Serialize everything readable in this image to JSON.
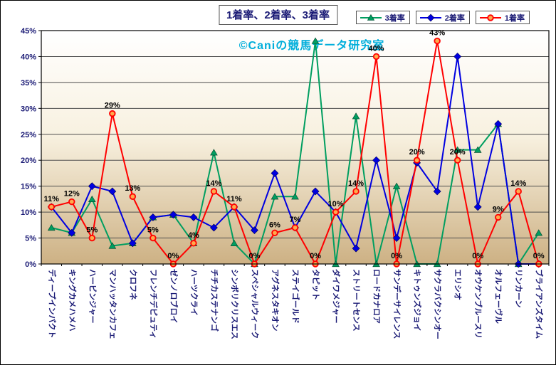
{
  "chart_data": {
    "type": "line",
    "title": "1着率、2着率、3着率",
    "watermark": "©Caniの競馬データ研究室",
    "legend_position": "top-right",
    "grid": true,
    "ylim": [
      0,
      45
    ],
    "y_tick_step": 5,
    "y_ticks": [
      "0%",
      "5%",
      "10%",
      "15%",
      "20%",
      "25%",
      "30%",
      "35%",
      "40%",
      "45%"
    ],
    "categories": [
      "ディープインパクト",
      "キングカメハメハ",
      "ハービンジャー",
      "マンハッタンカフェ",
      "クロフネ",
      "フレンチデピュティ",
      "ゼンノロブロイ",
      "ハーツクライ",
      "チチカステナンゴ",
      "シンボリクリスエス",
      "スペシャルウィーク",
      "アグネスタキオン",
      "ステイゴールド",
      "タピット",
      "ダイワメジャー",
      "ストリートセンス",
      "ロードカナロア",
      "サンデーサイレンス",
      "キトゥンズジョイ",
      "サクラバクシンオー",
      "エリシオ",
      "オウケンブルースリ",
      "オルフェーヴル",
      "リンカーン",
      "ブライアンズタイム"
    ],
    "series": [
      {
        "name": "3着率",
        "color": "#009E60",
        "marker": "triangle",
        "values": [
          7,
          6,
          12.5,
          3.5,
          4,
          9,
          9.5,
          4,
          21.5,
          4,
          0,
          13,
          13,
          43,
          0,
          28.5,
          0,
          15,
          0,
          0,
          22,
          22,
          27,
          0,
          6
        ]
      },
      {
        "name": "2着率",
        "color": "#0000E0",
        "marker": "diamond",
        "values": [
          11,
          6,
          15,
          14,
          4,
          9,
          9.5,
          9,
          7,
          11,
          6.5,
          17.5,
          7,
          14,
          10,
          3,
          20,
          5,
          19.5,
          14,
          40,
          11,
          27,
          0,
          0
        ]
      },
      {
        "name": "1着率",
        "color": "#FF0000",
        "marker": "circle",
        "marker_fill": "#FFA94D",
        "values": [
          11,
          12,
          5,
          29,
          13,
          5,
          0,
          4,
          14,
          11,
          0,
          6,
          7,
          0,
          10,
          14,
          40,
          0,
          20,
          43,
          20,
          0,
          9,
          14,
          0
        ],
        "data_labels": [
          "11%",
          "12%",
          "5%",
          "29%",
          "13%",
          "5%",
          "0%",
          "4%",
          "14%",
          "11%",
          "0%",
          "6%",
          "7%",
          "0%",
          "10%",
          "14%",
          "40%",
          "0%",
          "20%",
          "43%",
          "20%",
          "0%",
          "9%",
          "14%",
          "0%"
        ]
      }
    ],
    "colors": {
      "axis_text": "#1A1A75",
      "title_text": "#1A1A75",
      "data_label": "#000000",
      "watermark": "#00AEDB",
      "grid": "#4D4D4D",
      "plot_border": "#000000",
      "plot_bg_gradient": [
        "#FFFFFF",
        "#F8F1E0",
        "#CDB184"
      ]
    }
  }
}
